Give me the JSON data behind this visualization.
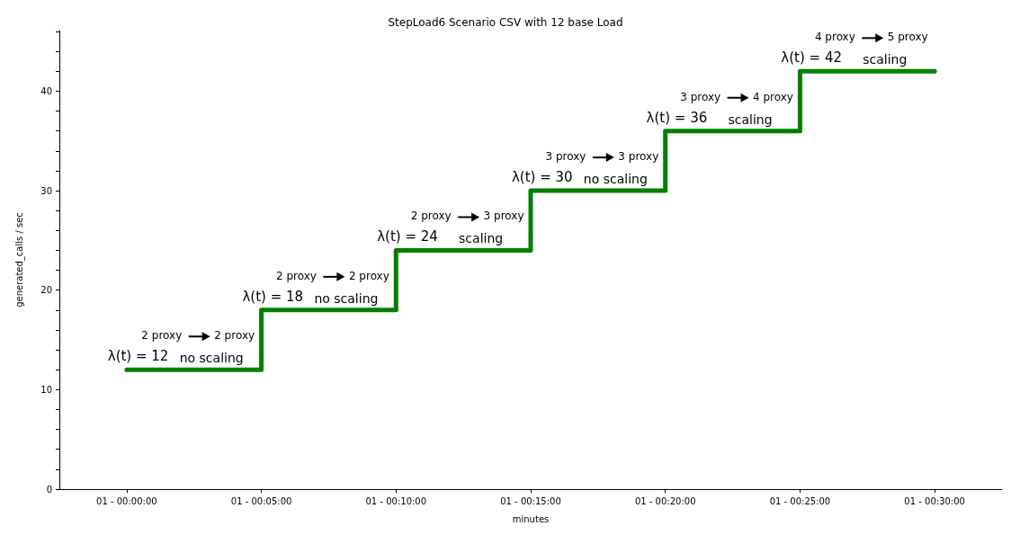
{
  "chart_data": {
    "type": "step",
    "title": "StepLoad6 Scenario CSV with 12 base Load",
    "xlabel": "minutes",
    "ylabel": "generated_calls / sec",
    "categories": [
      "01 - 00:00:00",
      "01 - 00:05:00",
      "01 - 00:10:00",
      "01 - 00:15:00",
      "01 - 00:20:00",
      "01 - 00:25:00",
      "01 - 00:30:00"
    ],
    "series": [
      {
        "color": "#008000",
        "values": [
          12,
          18,
          24,
          30,
          36,
          42,
          42
        ]
      }
    ],
    "ylim": [
      0,
      46.1
    ],
    "yticks": [
      0,
      {
        "value": 2,
        "label": null
      },
      {
        "value": 4,
        "label": null
      },
      {
        "value": 6,
        "label": null
      },
      {
        "value": 8,
        "label": null
      },
      10,
      {
        "value": 12,
        "label": null
      },
      {
        "value": 14,
        "label": null
      },
      {
        "value": 16,
        "label": null
      },
      {
        "value": 18,
        "label": null
      },
      20,
      {
        "value": 22,
        "label": null
      },
      {
        "value": 24,
        "label": null
      },
      {
        "value": 26,
        "label": null
      },
      {
        "value": 28,
        "label": null
      },
      30,
      {
        "value": 32,
        "label": null
      },
      {
        "value": 34,
        "label": null
      },
      {
        "value": 36,
        "label": null
      },
      {
        "value": 38,
        "label": null
      },
      40,
      {
        "value": 42,
        "label": null
      },
      {
        "value": 44,
        "label": null
      },
      {
        "value": 46,
        "label": null
      }
    ],
    "grid": false,
    "marker": "none",
    "line_style": "solid",
    "annotations": [
      "λ(t) = 12",
      "2 proxy",
      "2 proxy",
      "no scaling",
      "λ(t) = 18",
      "2 proxy",
      "2 proxy",
      "no scaling",
      "λ(t) = 24",
      "2 proxy",
      "3 proxy",
      "scaling",
      "λ(t) = 30",
      "3 proxy",
      "3 proxy",
      "no scaling",
      "λ(t) = 36",
      "3 proxy",
      "4 proxy",
      "scaling",
      "λ(t) = 42",
      "4 proxy",
      "5 proxy",
      "scaling"
    ]
  }
}
